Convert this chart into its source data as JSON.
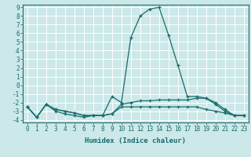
{
  "xlabel": "Humidex (Indice chaleur)",
  "background_color": "#cce8e8",
  "grid_color": "#ffffff",
  "line_color": "#1a6b6b",
  "xlim": [
    -0.5,
    23.5
  ],
  "ylim": [
    -4.3,
    9.3
  ],
  "x": [
    0,
    1,
    2,
    3,
    4,
    5,
    6,
    7,
    8,
    9,
    10,
    11,
    12,
    13,
    14,
    15,
    16,
    17,
    18,
    19,
    20,
    21,
    22,
    23
  ],
  "series1": [
    -2.5,
    -3.7,
    -2.2,
    -3.0,
    -3.3,
    -3.5,
    -3.7,
    -3.5,
    -3.5,
    -1.3,
    -2.0,
    5.5,
    8.0,
    8.8,
    9.0,
    5.8,
    2.3,
    -1.3,
    -1.3,
    -1.5,
    -2.2,
    -3.0,
    -3.5,
    -3.5
  ],
  "series2": [
    -2.5,
    -3.7,
    -2.2,
    -2.8,
    -3.0,
    -3.2,
    -3.5,
    -3.5,
    -3.5,
    -3.3,
    -2.2,
    -2.0,
    -1.8,
    -1.8,
    -1.7,
    -1.7,
    -1.7,
    -1.7,
    -1.5,
    -1.5,
    -2.0,
    -2.8,
    -3.5,
    -3.5
  ],
  "series3": [
    -2.5,
    -3.7,
    -2.2,
    -2.8,
    -3.0,
    -3.2,
    -3.5,
    -3.5,
    -3.5,
    -3.3,
    -2.5,
    -2.5,
    -2.5,
    -2.5,
    -2.5,
    -2.5,
    -2.5,
    -2.5,
    -2.5,
    -2.8,
    -3.0,
    -3.2,
    -3.5,
    -3.5
  ],
  "yticks": [
    -4,
    -3,
    -2,
    -1,
    0,
    1,
    2,
    3,
    4,
    5,
    6,
    7,
    8,
    9
  ],
  "xticks": [
    0,
    1,
    2,
    3,
    4,
    5,
    6,
    7,
    8,
    9,
    10,
    11,
    12,
    13,
    14,
    15,
    16,
    17,
    18,
    19,
    20,
    21,
    22,
    23
  ],
  "tick_fontsize": 5.5,
  "xlabel_fontsize": 6.5
}
